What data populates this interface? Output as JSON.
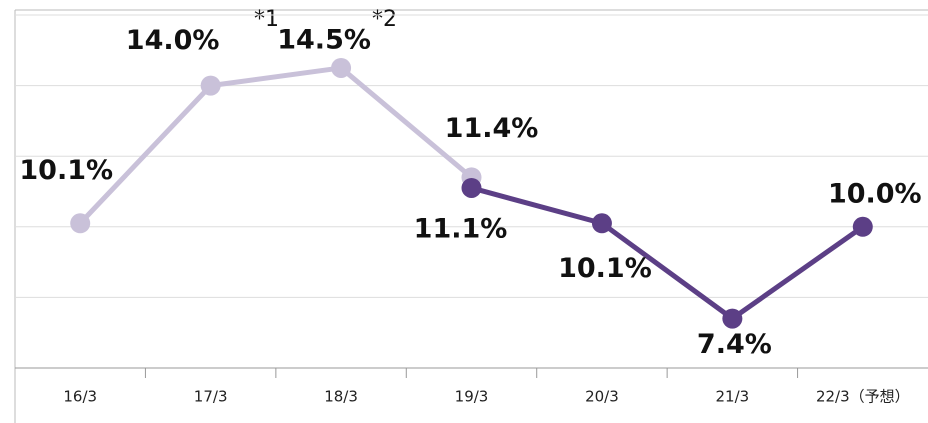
{
  "chart_data": {
    "type": "line",
    "categories": [
      "16/3",
      "17/3",
      "18/3",
      "19/3",
      "20/3",
      "21/3",
      "22/3（予想）"
    ],
    "series": [
      {
        "color": "#c9c1d9",
        "values": [
          10.1,
          14.0,
          14.5,
          11.4,
          null,
          null,
          null
        ],
        "value_labels": [
          "10.1%",
          "14.0%",
          "14.5%",
          "11.4%",
          null,
          null,
          null
        ]
      },
      {
        "color": "#5c3f86",
        "values": [
          null,
          null,
          null,
          11.1,
          10.1,
          7.4,
          10.0
        ],
        "value_labels": [
          null,
          null,
          null,
          "11.1%",
          "10.1%",
          "7.4%",
          "10.0%"
        ]
      }
    ],
    "annotations": [
      "*1",
      "*2"
    ],
    "ylim": [
      6,
      16
    ],
    "yticks": [
      6,
      8,
      10,
      12,
      14,
      16
    ],
    "grid": true
  }
}
